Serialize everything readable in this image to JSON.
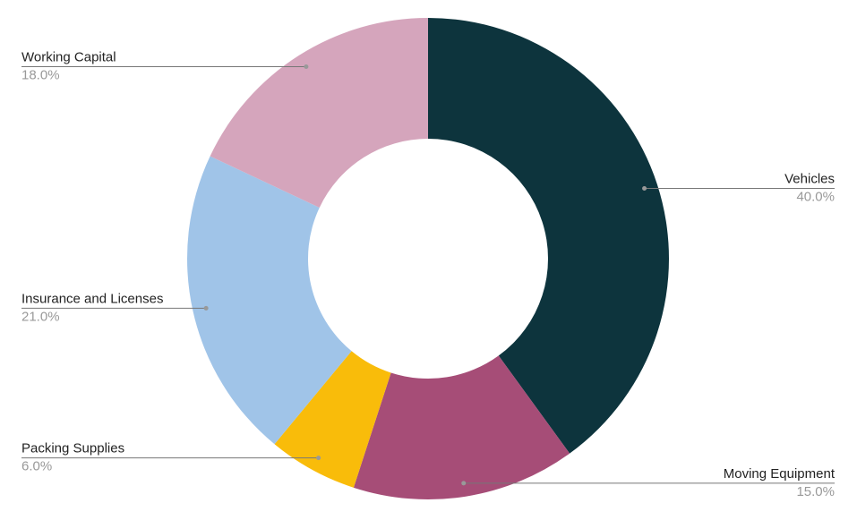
{
  "chart_data": {
    "type": "donut",
    "categories": [
      "Vehicles",
      "Moving Equipment",
      "Packing Supplies",
      "Insurance and Licenses",
      "Working Capital"
    ],
    "values": [
      40,
      15,
      6,
      21,
      18
    ],
    "value_labels": [
      "40.0%",
      "15.0%",
      "6.0%",
      "21.0%",
      "18.0%"
    ],
    "colors": [
      "#0d343d",
      "#a64d77",
      "#f9bc0a",
      "#a0c4e8",
      "#d5a5bc"
    ]
  }
}
